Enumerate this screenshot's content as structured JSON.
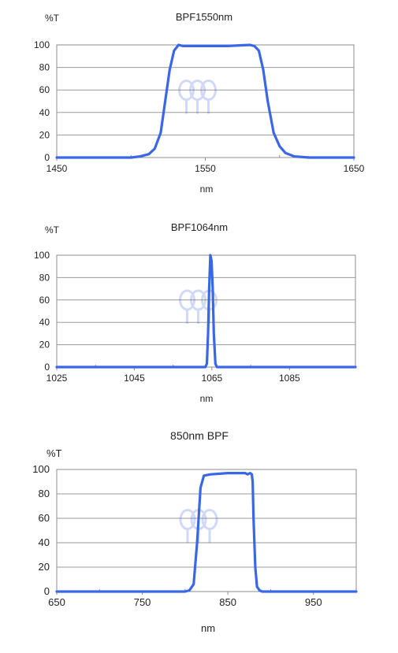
{
  "chart_data": [
    {
      "type": "line",
      "title": "BPF1550nm",
      "ylabel": "%T",
      "xlabel": "nm",
      "xlim": [
        1450,
        1650
      ],
      "ylim": [
        0,
        100
      ],
      "xticks": [
        1450,
        1550,
        1650
      ],
      "yticks": [
        0,
        20,
        40,
        60,
        80,
        100
      ],
      "grid": "horizontal",
      "color": "#3a67e6",
      "x": [
        1450,
        1500,
        1506,
        1512,
        1516,
        1520,
        1523,
        1526,
        1529,
        1532,
        1535,
        1550,
        1565,
        1580,
        1583,
        1586,
        1589,
        1592,
        1596,
        1600,
        1604,
        1610,
        1620,
        1650
      ],
      "y": [
        0,
        0,
        1,
        3,
        8,
        22,
        50,
        78,
        95,
        100,
        99,
        99,
        99,
        100,
        99,
        95,
        78,
        50,
        22,
        10,
        4,
        1,
        0,
        0
      ]
    },
    {
      "type": "line",
      "title": "BPF1064nm",
      "ylabel": "%T",
      "xlabel": "nm",
      "xlim": [
        1025,
        1102
      ],
      "ylim": [
        0,
        100
      ],
      "xticks": [
        1025,
        1045,
        1065,
        1085
      ],
      "yticks": [
        0,
        20,
        40,
        60,
        80,
        100
      ],
      "grid": "horizontal",
      "color": "#3a67e6",
      "x": [
        1025,
        1063.3,
        1063.7,
        1064.0,
        1064.3,
        1064.6,
        1064.9,
        1065.2,
        1065.5,
        1065.9,
        1066.3,
        1102
      ],
      "y": [
        0,
        0,
        3,
        30,
        70,
        100,
        95,
        70,
        30,
        3,
        0,
        0
      ]
    },
    {
      "type": "line",
      "title": "850nm BPF",
      "ylabel": "%T",
      "xlabel": "nm",
      "xlim": [
        650,
        1000
      ],
      "ylim": [
        0,
        100
      ],
      "xticks": [
        650,
        750,
        850,
        950
      ],
      "yticks": [
        0,
        20,
        40,
        60,
        80,
        100
      ],
      "grid": "horizontal",
      "color": "#3a67e6",
      "x": [
        650,
        800,
        805,
        810,
        814,
        818,
        822,
        830,
        850,
        870,
        873,
        876,
        878,
        879,
        880,
        882,
        884,
        887,
        890,
        1000
      ],
      "y": [
        0,
        0,
        1,
        6,
        40,
        85,
        95,
        96,
        97,
        97,
        96,
        97,
        96,
        90,
        60,
        20,
        4,
        1,
        0,
        0
      ]
    }
  ]
}
